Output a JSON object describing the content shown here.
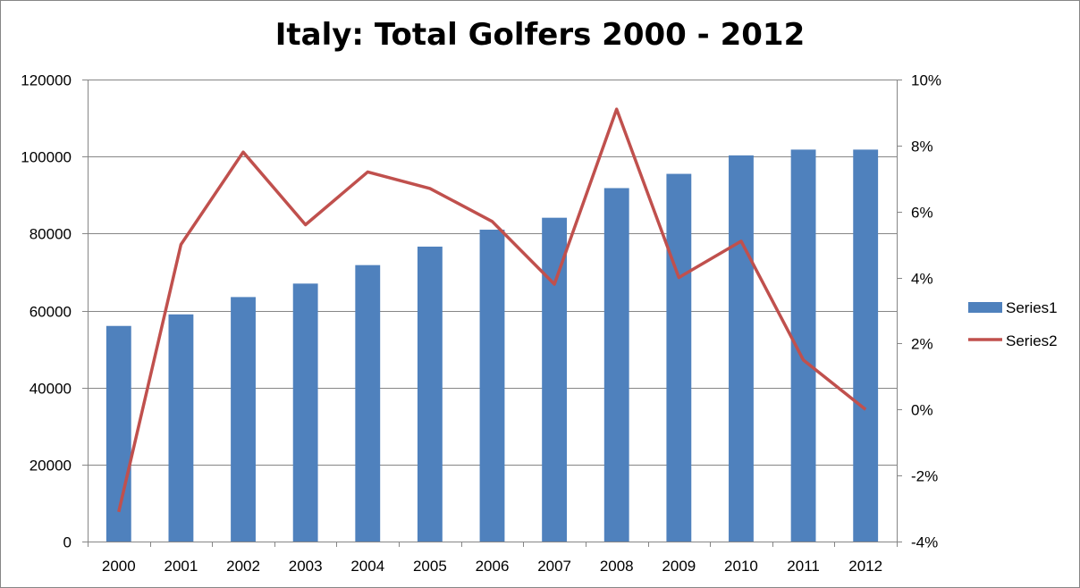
{
  "chart_data": {
    "type": "bar",
    "title": "Italy: Total Golfers 2000 - 2012",
    "categories": [
      "2000",
      "2001",
      "2002",
      "2003",
      "2004",
      "2005",
      "2006",
      "2007",
      "2008",
      "2009",
      "2010",
      "2011",
      "2012"
    ],
    "series": [
      {
        "name": "Series1",
        "type": "bar",
        "axis": "left",
        "color": "#4F81BD",
        "values": [
          56000,
          59000,
          63500,
          67000,
          71800,
          76600,
          81000,
          84100,
          91800,
          95500,
          100300,
          101800,
          101800
        ]
      },
      {
        "name": "Series2",
        "type": "line",
        "axis": "right",
        "color": "#C0504D",
        "values": [
          -3.1,
          5.0,
          7.8,
          5.6,
          7.2,
          6.7,
          5.7,
          3.8,
          9.1,
          4.0,
          5.1,
          1.5,
          0.0
        ]
      }
    ],
    "y_left": {
      "ylim": [
        0,
        120000
      ],
      "ticks": [
        "0",
        "20000",
        "40000",
        "60000",
        "80000",
        "100000",
        "120000"
      ]
    },
    "y_right": {
      "ylim": [
        -4,
        10
      ],
      "ticks": [
        "-4%",
        "-2%",
        "0%",
        "2%",
        "4%",
        "6%",
        "8%",
        "10%"
      ]
    },
    "grid": true,
    "legend": "right"
  }
}
